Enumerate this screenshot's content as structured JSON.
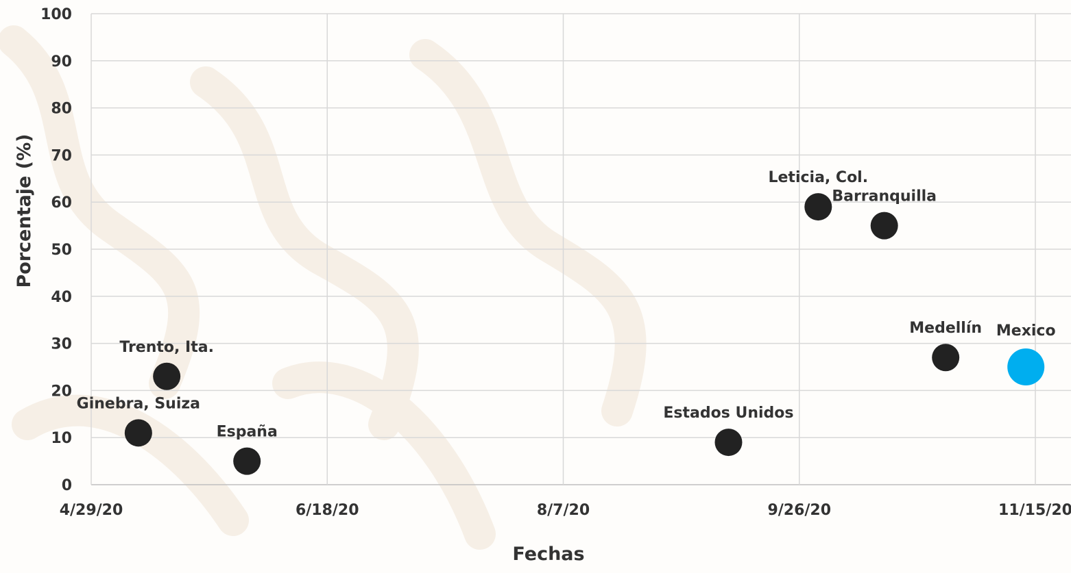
{
  "chart_data": {
    "type": "scatter",
    "xlabel": "Fechas",
    "ylabel": "Porcentaje (%)",
    "ylim": [
      0,
      100
    ],
    "yticks": [
      "0",
      "10",
      "20",
      "30",
      "40",
      "50",
      "60",
      "70",
      "80",
      "90",
      "100"
    ],
    "xlim": [
      "2020-04-29",
      "2020-11-15"
    ],
    "xticks": [
      {
        "date": "2020-04-29",
        "label": "4/29/20"
      },
      {
        "date": "2020-06-18",
        "label": "6/18/20"
      },
      {
        "date": "2020-08-07",
        "label": "8/7/20"
      },
      {
        "date": "2020-09-26",
        "label": "9/26/20"
      },
      {
        "date": "2020-11-15",
        "label": "11/15/20"
      }
    ],
    "grid": true,
    "points": [
      {
        "label": "Ginebra, Suiza",
        "date": "2020-05-09",
        "value": 11,
        "color": "#222222",
        "label_pos": "above"
      },
      {
        "label": "Trento, Ita.",
        "date": "2020-05-15",
        "value": 23,
        "color": "#222222",
        "label_pos": "above"
      },
      {
        "label": "España",
        "date": "2020-06-01",
        "value": 5,
        "color": "#222222",
        "label_pos": "above"
      },
      {
        "label": "Estados Unidos",
        "date": "2020-09-11",
        "value": 9,
        "color": "#222222",
        "label_pos": "above"
      },
      {
        "label": "Leticia, Col.",
        "date": "2020-09-30",
        "value": 59,
        "color": "#222222",
        "label_pos": "above"
      },
      {
        "label": "Barranquilla",
        "date": "2020-10-14",
        "value": 55,
        "color": "#222222",
        "label_pos": "above"
      },
      {
        "label": "Medellín",
        "date": "2020-10-27",
        "value": 27,
        "color": "#222222",
        "label_pos": "above"
      },
      {
        "label": "Mexico",
        "date": "2020-11-13",
        "value": 25,
        "color": "#00aeef",
        "label_pos": "above-right"
      }
    ]
  }
}
